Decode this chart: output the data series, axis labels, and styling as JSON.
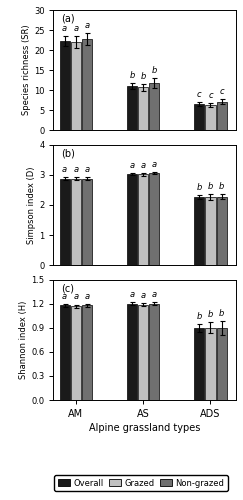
{
  "panels": [
    {
      "label": "(a)",
      "ylabel": "Species richness (SR)",
      "ylim": [
        0,
        30
      ],
      "yticks": [
        0,
        5,
        10,
        15,
        20,
        25,
        30
      ],
      "groups": [
        "AM",
        "AS",
        "ADS"
      ],
      "values": {
        "Overall": [
          22.3,
          11.1,
          6.5
        ],
        "Grazed": [
          22.0,
          10.7,
          6.3
        ],
        "Non-grazed": [
          22.8,
          11.8,
          7.1
        ]
      },
      "errors": {
        "Overall": [
          1.3,
          0.8,
          0.5
        ],
        "Grazed": [
          1.5,
          0.8,
          0.5
        ],
        "Non-grazed": [
          1.4,
          1.3,
          0.6
        ]
      },
      "sig_labels": {
        "AM": [
          "a",
          "a",
          "a"
        ],
        "AS": [
          "b",
          "b",
          "b"
        ],
        "ADS": [
          "c",
          "c",
          "c"
        ]
      }
    },
    {
      "label": "(b)",
      "ylabel": "Simpson index (D)",
      "ylim": [
        0,
        4
      ],
      "yticks": [
        0,
        1,
        2,
        3,
        4
      ],
      "groups": [
        "AM",
        "AS",
        "ADS"
      ],
      "values": {
        "Overall": [
          2.88,
          3.02,
          2.27
        ],
        "Grazed": [
          2.88,
          3.02,
          2.27
        ],
        "Non-grazed": [
          2.88,
          3.07,
          2.27
        ]
      },
      "errors": {
        "Overall": [
          0.05,
          0.03,
          0.07
        ],
        "Grazed": [
          0.06,
          0.04,
          0.09
        ],
        "Non-grazed": [
          0.05,
          0.04,
          0.08
        ]
      },
      "sig_labels": {
        "AM": [
          "a",
          "a",
          "a"
        ],
        "AS": [
          "a",
          "a",
          "a"
        ],
        "ADS": [
          "b",
          "b",
          "b"
        ]
      }
    },
    {
      "label": "(c)",
      "ylabel": "Shannon index (H)",
      "ylim": [
        0.0,
        1.5
      ],
      "yticks": [
        0.0,
        0.3,
        0.6,
        0.9,
        1.2,
        1.5
      ],
      "groups": [
        "AM",
        "AS",
        "ADS"
      ],
      "values": {
        "Overall": [
          1.18,
          1.2,
          0.9
        ],
        "Grazed": [
          1.17,
          1.19,
          0.9
        ],
        "Non-grazed": [
          1.18,
          1.2,
          0.9
        ]
      },
      "errors": {
        "Overall": [
          0.02,
          0.02,
          0.05
        ],
        "Grazed": [
          0.02,
          0.02,
          0.07
        ],
        "Non-grazed": [
          0.02,
          0.02,
          0.09
        ]
      },
      "sig_labels": {
        "AM": [
          "a",
          "a",
          "a"
        ],
        "AS": [
          "a",
          "a",
          "a"
        ],
        "ADS": [
          "b",
          "b",
          "b"
        ]
      }
    }
  ],
  "series": [
    "Overall",
    "Grazed",
    "Non-grazed"
  ],
  "colors": {
    "Overall": "#1a1a1a",
    "Grazed": "#c0c0c0",
    "Non-grazed": "#707070"
  },
  "bar_width": 0.2,
  "group_positions": [
    1.0,
    2.2,
    3.4
  ],
  "xlabel": "Alpine grassland types",
  "group_labels": [
    "AM",
    "AS",
    "ADS"
  ],
  "legend_colors": {
    "Overall": "#1a1a1a",
    "Grazed": "#c0c0c0",
    "Non-grazed": "#707070"
  }
}
